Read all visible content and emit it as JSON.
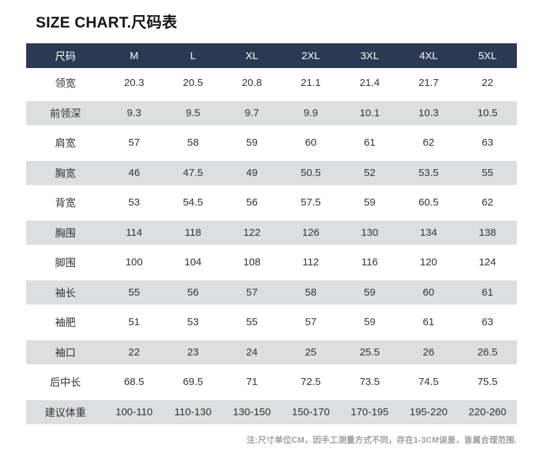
{
  "title": "SIZE CHART.尺码表",
  "note": "注:尺寸单位CM，因手工测量方式不同，存在1-3CM误差，皆属合理范围.",
  "colors": {
    "header_bg": "#2b3a52",
    "header_text": "#ffffff",
    "stripe_bg": "#dcdee0",
    "body_text": "#333333",
    "note_text": "#9f9f9f"
  },
  "chart_data": {
    "type": "table",
    "title": "SIZE CHART.尺码表",
    "columns": [
      "尺码",
      "M",
      "L",
      "XL",
      "2XL",
      "3XL",
      "4XL",
      "5XL"
    ],
    "rows": [
      {
        "label": "领宽",
        "values": [
          "20.3",
          "20.5",
          "20.8",
          "21.1",
          "21.4",
          "21.7",
          "22"
        ]
      },
      {
        "label": "前领深",
        "values": [
          "9.3",
          "9.5",
          "9.7",
          "9.9",
          "10.1",
          "10.3",
          "10.5"
        ]
      },
      {
        "label": "肩宽",
        "values": [
          "57",
          "58",
          "59",
          "60",
          "61",
          "62",
          "63"
        ]
      },
      {
        "label": "胸宽",
        "values": [
          "46",
          "47.5",
          "49",
          "50.5",
          "52",
          "53.5",
          "55"
        ]
      },
      {
        "label": "背宽",
        "values": [
          "53",
          "54.5",
          "56",
          "57.5",
          "59",
          "60.5",
          "62"
        ]
      },
      {
        "label": "胸围",
        "values": [
          "114",
          "118",
          "122",
          "126",
          "130",
          "134",
          "138"
        ]
      },
      {
        "label": "脚围",
        "values": [
          "100",
          "104",
          "108",
          "112",
          "116",
          "120",
          "124"
        ]
      },
      {
        "label": "袖长",
        "values": [
          "55",
          "56",
          "57",
          "58",
          "59",
          "60",
          "61"
        ]
      },
      {
        "label": "袖肥",
        "values": [
          "51",
          "53",
          "55",
          "57",
          "59",
          "61",
          "63"
        ]
      },
      {
        "label": "袖口",
        "values": [
          "22",
          "23",
          "24",
          "25",
          "25.5",
          "26",
          "26.5"
        ]
      },
      {
        "label": "后中长",
        "values": [
          "68.5",
          "69.5",
          "71",
          "72.5",
          "73.5",
          "74.5",
          "75.5"
        ]
      },
      {
        "label": "建议体重",
        "values": [
          "100-110",
          "110-130",
          "130-150",
          "150-170",
          "170-195",
          "195-220",
          "220-260"
        ]
      }
    ],
    "layout": {
      "striped_row_indices": [
        1,
        3,
        5,
        7,
        9,
        11
      ],
      "note_position": "bottom-right"
    }
  }
}
